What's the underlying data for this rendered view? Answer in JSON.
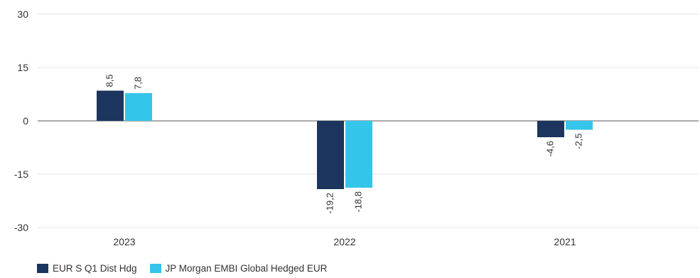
{
  "chart_data": {
    "type": "bar",
    "categories": [
      "2023",
      "2022",
      "2021"
    ],
    "series": [
      {
        "name": "EUR S Q1 Dist Hdg",
        "values": [
          8.5,
          -19.2,
          -4.6
        ],
        "labels": [
          "8,5",
          "-19,2",
          "-4,6"
        ],
        "color": "#1b355e"
      },
      {
        "name": "JP Morgan EMBI Global Hedged EUR",
        "values": [
          7.8,
          -18.8,
          -2.5
        ],
        "labels": [
          "7,8",
          "-18,8",
          "-2,5"
        ],
        "color": "#36c5ea"
      }
    ],
    "ylim": [
      -30,
      30
    ],
    "yticks": [
      30,
      15,
      0,
      -15,
      -30
    ],
    "grid": true,
    "legend_position": "bottom-left"
  }
}
